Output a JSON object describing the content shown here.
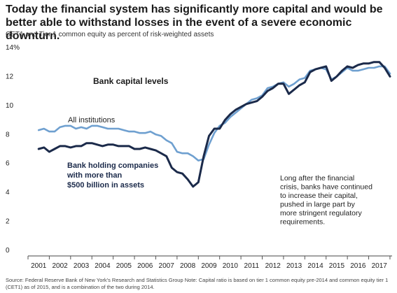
{
  "headline": "Today the financial system has significantly more capital and would be better able to withstand losses in the event of a severe economic downturn.",
  "subtitle": "CET1 and Tier 1 common equity as percent of risk-weighted assets",
  "source": "Source: Federal Reserve Bank of New York's Research and Statistics Group   Note: Capital ratio is based on tier 1 common equity pre-2014 and common equity tier 1 (CET1) as of 2015, and is a combination of the two during 2014.",
  "colors": {
    "all_institutions": "#6fa0d0",
    "bhc_500b": "#1b2a4a"
  },
  "chart_data": {
    "type": "line",
    "title": "Bank capital levels",
    "xlabel": "",
    "ylabel": "",
    "ylim": [
      0,
      14
    ],
    "xlim": [
      2000.5,
      2017.6
    ],
    "y_ticks": [
      0,
      2,
      4,
      6,
      8,
      10,
      12,
      14
    ],
    "y_tick_labels": [
      "0",
      "2",
      "4",
      "6",
      "8",
      "10",
      "12",
      "14%"
    ],
    "x_ticks": [
      2001,
      2002,
      2003,
      2004,
      2005,
      2006,
      2007,
      2008,
      2009,
      2010,
      2011,
      2012,
      2013,
      2014,
      2015,
      2016,
      2017
    ],
    "x_tick_labels": [
      "2001",
      "2002",
      "2003",
      "2004",
      "2005",
      "2006",
      "2007",
      "2008",
      "2009",
      "2010",
      "2011",
      "2012",
      "2013",
      "2014",
      "2015",
      "2016",
      "2017"
    ],
    "grid": false,
    "series": [
      {
        "name": "All institutions",
        "color": "#6fa0d0",
        "x": [
          2001.0,
          2001.25,
          2001.5,
          2001.75,
          2002.0,
          2002.25,
          2002.5,
          2002.75,
          2003.0,
          2003.25,
          2003.5,
          2003.75,
          2004.0,
          2004.25,
          2004.5,
          2004.75,
          2005.0,
          2005.25,
          2005.5,
          2005.75,
          2006.0,
          2006.25,
          2006.5,
          2006.75,
          2007.0,
          2007.25,
          2007.5,
          2007.75,
          2008.0,
          2008.25,
          2008.5,
          2008.75,
          2009.0,
          2009.25,
          2009.5,
          2009.75,
          2010.0,
          2010.25,
          2010.5,
          2010.75,
          2011.0,
          2011.25,
          2011.5,
          2011.75,
          2012.0,
          2012.25,
          2012.5,
          2012.75,
          2013.0,
          2013.25,
          2013.5,
          2013.75,
          2014.0,
          2014.25,
          2014.5,
          2014.75,
          2015.0,
          2015.25,
          2015.5,
          2015.75,
          2016.0,
          2016.25,
          2016.5,
          2016.75,
          2017.0,
          2017.25,
          2017.5
        ],
        "values": [
          8.3,
          8.4,
          8.2,
          8.2,
          8.5,
          8.6,
          8.6,
          8.4,
          8.5,
          8.4,
          8.6,
          8.6,
          8.5,
          8.4,
          8.4,
          8.4,
          8.3,
          8.2,
          8.2,
          8.1,
          8.1,
          8.2,
          8.0,
          7.9,
          7.6,
          7.4,
          6.8,
          6.7,
          6.7,
          6.5,
          6.2,
          6.3,
          7.3,
          8.1,
          8.6,
          8.8,
          9.2,
          9.5,
          9.8,
          10.1,
          10.4,
          10.5,
          10.7,
          11.2,
          11.3,
          11.5,
          11.6,
          11.3,
          11.5,
          11.8,
          11.9,
          12.4,
          12.5,
          12.6,
          12.5,
          11.8,
          12.0,
          12.3,
          12.6,
          12.4,
          12.4,
          12.5,
          12.6,
          12.6,
          12.7,
          12.7,
          12.2
        ]
      },
      {
        "name": "Bank holding companies with more than $500 billion in assets",
        "color": "#1b2a4a",
        "x": [
          2001.0,
          2001.25,
          2001.5,
          2001.75,
          2002.0,
          2002.25,
          2002.5,
          2002.75,
          2003.0,
          2003.25,
          2003.5,
          2003.75,
          2004.0,
          2004.25,
          2004.5,
          2004.75,
          2005.0,
          2005.25,
          2005.5,
          2005.75,
          2006.0,
          2006.25,
          2006.5,
          2006.75,
          2007.0,
          2007.25,
          2007.5,
          2007.75,
          2008.0,
          2008.25,
          2008.5,
          2008.75,
          2009.0,
          2009.25,
          2009.5,
          2009.75,
          2010.0,
          2010.25,
          2010.5,
          2010.75,
          2011.0,
          2011.25,
          2011.5,
          2011.75,
          2012.0,
          2012.25,
          2012.5,
          2012.75,
          2013.0,
          2013.25,
          2013.5,
          2013.75,
          2014.0,
          2014.25,
          2014.5,
          2014.75,
          2015.0,
          2015.25,
          2015.5,
          2015.75,
          2016.0,
          2016.25,
          2016.5,
          2016.75,
          2017.0,
          2017.25,
          2017.5
        ],
        "values": [
          7.0,
          7.1,
          6.8,
          7.0,
          7.2,
          7.2,
          7.1,
          7.2,
          7.2,
          7.4,
          7.4,
          7.3,
          7.2,
          7.3,
          7.3,
          7.2,
          7.2,
          7.2,
          7.0,
          7.0,
          7.1,
          7.0,
          6.9,
          6.7,
          6.5,
          5.7,
          5.4,
          5.3,
          4.9,
          4.4,
          4.7,
          6.5,
          7.9,
          8.4,
          8.4,
          9.0,
          9.4,
          9.7,
          9.9,
          10.1,
          10.2,
          10.3,
          10.6,
          11.0,
          11.2,
          11.5,
          11.5,
          10.8,
          11.1,
          11.4,
          11.6,
          12.3,
          12.5,
          12.6,
          12.7,
          11.7,
          12.0,
          12.4,
          12.7,
          12.6,
          12.8,
          12.9,
          12.9,
          13.0,
          13.0,
          12.6,
          12.0
        ]
      }
    ],
    "annotations": {
      "all_label": "All institutions",
      "bhc_label_lines": [
        "Bank holding companies",
        "with more than",
        "$500 billion in assets"
      ],
      "note_lines": [
        "Long after the financial",
        "crisis, banks have continued",
        "to increase their capital,",
        "pushed in large part by",
        "more stringent regulatory",
        "requirements."
      ]
    }
  }
}
